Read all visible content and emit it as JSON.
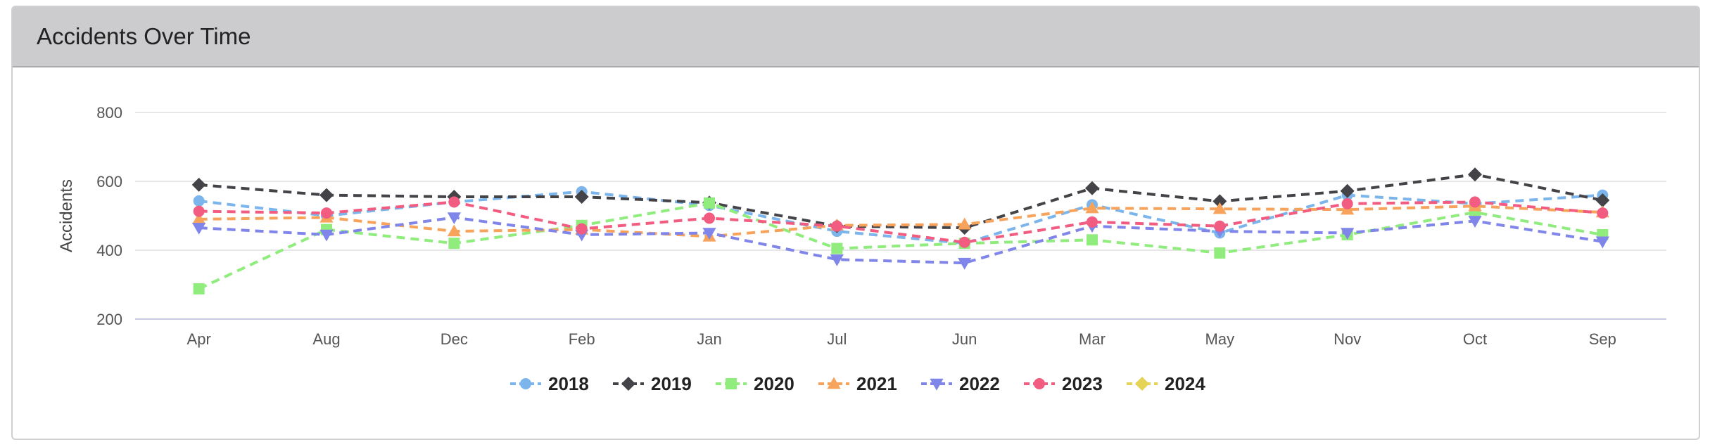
{
  "panel": {
    "title": "Accidents Over Time"
  },
  "chart_data": {
    "type": "line",
    "title": "Accidents Over Time",
    "xlabel": "",
    "ylabel": "Accidents",
    "ylim": [
      200,
      800
    ],
    "yticks": [
      200,
      400,
      600,
      800
    ],
    "grid": true,
    "legend_position": "bottom",
    "line_style": "dashed",
    "categories": [
      "Apr",
      "Aug",
      "Dec",
      "Feb",
      "Jan",
      "Jul",
      "Jun",
      "Mar",
      "May",
      "Nov",
      "Oct",
      "Sep"
    ],
    "series": [
      {
        "name": "2018",
        "color": "#7cb5ec",
        "marker": "circle",
        "values": [
          543,
          500,
          540,
          570,
          530,
          455,
          420,
          532,
          450,
          560,
          535,
          560
        ]
      },
      {
        "name": "2019",
        "color": "#434348",
        "marker": "diamond",
        "values": [
          590,
          560,
          555,
          555,
          538,
          470,
          465,
          580,
          542,
          572,
          620,
          545
        ]
      },
      {
        "name": "2020",
        "color": "#90ed7d",
        "marker": "square",
        "values": [
          288,
          460,
          420,
          472,
          537,
          405,
          420,
          430,
          392,
          445,
          510,
          445
        ]
      },
      {
        "name": "2021",
        "color": "#f7a35c",
        "marker": "triangle",
        "values": [
          490,
          495,
          455,
          460,
          440,
          472,
          475,
          522,
          520,
          518,
          528,
          510
        ]
      },
      {
        "name": "2022",
        "color": "#8085e9",
        "marker": "triangle-down",
        "values": [
          465,
          445,
          495,
          445,
          450,
          373,
          363,
          470,
          455,
          450,
          485,
          425
        ]
      },
      {
        "name": "2023",
        "color": "#f15c80",
        "marker": "circle",
        "values": [
          513,
          508,
          540,
          462,
          493,
          470,
          423,
          482,
          470,
          535,
          540,
          508
        ]
      },
      {
        "name": "2024",
        "color": "#e4d354",
        "marker": "diamond",
        "values": [
          null,
          null,
          null,
          null,
          null,
          null,
          null,
          null,
          null,
          null,
          null,
          null
        ]
      }
    ]
  }
}
